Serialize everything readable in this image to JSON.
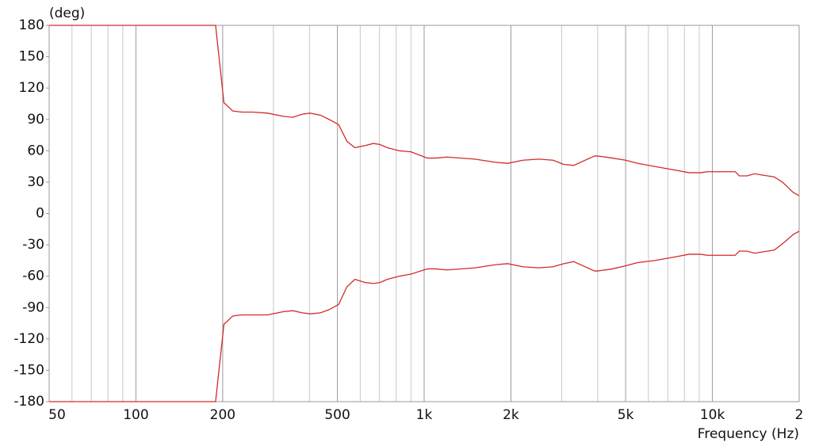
{
  "chart_data": {
    "type": "line",
    "y_label": "(deg)",
    "x_label": "Frequency (Hz)",
    "log_x": true,
    "xlim": [
      50,
      20000
    ],
    "ylim": [
      -180,
      180
    ],
    "xticks": [
      50,
      100,
      200,
      500,
      {
        "value": 1000,
        "label": "1k"
      },
      {
        "value": 2000,
        "label": "2k"
      },
      {
        "value": 5000,
        "label": "5k"
      },
      {
        "value": 10000,
        "label": "10k"
      },
      {
        "value": 20000,
        "label": "2"
      }
    ],
    "yticks": [
      180,
      150,
      120,
      90,
      60,
      30,
      0,
      -30,
      -60,
      -90,
      -120,
      -150,
      -180
    ],
    "xgrid": [
      60,
      70,
      80,
      90,
      300,
      400,
      600,
      700,
      800,
      900,
      3000,
      4000,
      6000,
      7000,
      8000,
      9000
    ],
    "x": [
      50,
      189,
      202,
      217,
      233,
      255,
      286,
      324,
      350,
      378,
      402,
      437,
      468,
      505,
      540,
      575,
      624,
      667,
      702,
      745,
      820,
      900,
      1026,
      1100,
      1200,
      1500,
      1770,
      1950,
      2200,
      2500,
      2800,
      3050,
      3300,
      3900,
      4000,
      4500,
      5000,
      5500,
      6300,
      7600,
      8300,
      9100,
      9600,
      10000,
      11000,
      12000,
      12400,
      13200,
      14000,
      16400,
      17500,
      19100,
      20000
    ],
    "series": [
      {
        "color": "#d42a2a",
        "values": [
          180,
          180,
          106,
          98,
          97,
          97,
          96,
          93,
          92,
          95,
          96,
          94,
          90,
          85,
          69,
          63,
          65,
          67,
          66,
          63,
          60,
          59,
          53,
          53,
          54,
          52,
          49,
          48,
          51,
          52,
          51,
          47,
          46,
          55,
          55,
          53,
          51,
          48,
          45,
          41,
          39,
          39,
          40,
          40,
          40,
          40,
          36,
          36,
          38,
          35,
          30,
          20,
          17
        ]
      },
      {
        "color": "#d42a2a",
        "values": [
          -180,
          -180,
          -106,
          -98,
          -97,
          -97,
          -97,
          -94,
          -93,
          -95,
          -96,
          -95,
          -92,
          -87,
          -70,
          -63,
          -66,
          -67,
          -66,
          -63,
          -60,
          -58,
          -53,
          -53,
          -54,
          -52,
          -49,
          -48,
          -51,
          -52,
          -51,
          -48,
          -46,
          -55,
          -55,
          -53,
          -50,
          -47,
          -45,
          -41,
          -39,
          -39,
          -40,
          -40,
          -40,
          -40,
          -36,
          -36,
          -38,
          -35,
          -29,
          -20,
          -17
        ]
      }
    ]
  }
}
